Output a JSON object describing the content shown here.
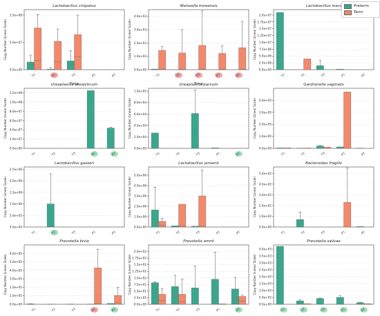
{
  "legend": {
    "preterm_label": "Preterm",
    "term_label": "Term",
    "preterm_color": "#3aa68e",
    "term_color": "#f4886b"
  },
  "colors": {
    "preterm": "#3aa68e",
    "term": "#f4886b",
    "median": "#7f7f7f",
    "highlight_green": "#9fe0bb",
    "highlight_red": "#f0a3a3",
    "grid": "#d9d9d9"
  },
  "chart_data": [
    {
      "type": "bar",
      "title": "Lactobacillus crispatus",
      "xlabel": "Time",
      "ylabel": "Copy Number (Linear Scale)",
      "categories": [
        "T1",
        "T2",
        "T3",
        "P1",
        "P2"
      ],
      "ylim": [
        0,
        2.2
      ],
      "y_exponent": 8,
      "yticks": [
        "0.0e+00",
        "5.0e+07",
        "1.0e+08",
        "1.5e+08",
        "2.0e+08"
      ],
      "highlight": {
        "T2": "red"
      },
      "series": [
        {
          "name": "Preterm",
          "values": [
            0.28,
            0.02,
            0.32,
            0.0,
            0.0
          ],
          "errors": [
            0.53,
            0.08,
            0.7,
            0.0,
            0.0
          ],
          "medians": [
            0.17,
            0.0,
            0.19,
            0.0,
            0.0
          ]
        },
        {
          "name": "Term",
          "values": [
            1.53,
            1.04,
            1.29,
            0.0,
            0.0
          ],
          "errors": [
            2.02,
            1.49,
            2.0,
            0.0,
            0.0
          ],
          "medians": [
            0.33,
            0.28,
            0.48,
            0.0,
            0.0
          ]
        }
      ]
    },
    {
      "type": "bar",
      "title": "Weissella koreensis",
      "xlabel": "Time",
      "ylabel": "Copy Number (Linear Scale)",
      "categories": [
        "T1",
        "T2",
        "T3",
        "P1",
        "P2"
      ],
      "ylim": [
        0,
        4.5
      ],
      "y_exponent": 3,
      "yticks": [
        "0.0e+00",
        "1.0e+03",
        "2.0e+03",
        "3.0e+03",
        "4.0e+03"
      ],
      "highlight": {
        "T2": "red",
        "T3": "red",
        "P1": "red",
        "P2": "red"
      },
      "series": [
        {
          "name": "Preterm",
          "values": [
            0.05,
            0.0,
            0.0,
            0.0,
            0.0
          ],
          "errors": [
            0.0,
            0.0,
            0.0,
            0.0,
            0.0
          ],
          "medians": [
            0.0,
            0.0,
            0.0,
            0.0,
            0.0
          ]
        },
        {
          "name": "Term",
          "values": [
            1.45,
            1.25,
            1.82,
            1.22,
            1.65
          ],
          "errors": [
            1.75,
            3.0,
            4.4,
            1.8,
            3.62
          ],
          "medians": [
            0.04,
            0.04,
            0.04,
            0.04,
            0.04
          ]
        }
      ]
    },
    {
      "type": "bar",
      "title": "Lactobacillus iners",
      "xlabel": "",
      "ylabel": "Copy Number (Linear Scale)",
      "categories": [
        "T1",
        "T2",
        "T3",
        "P1",
        "P2"
      ],
      "ylim": [
        0,
        2.2
      ],
      "y_exponent": 7,
      "yticks": [
        "0.0e+00",
        "2.5e+06",
        "5.0e+06",
        "7.5e+06",
        "1.0e+07",
        "1.25e+07",
        "1.5e+07",
        "1.75e+07",
        "2.0e+07"
      ],
      "ytick_values": [
        0,
        0.25,
        0.5,
        0.75,
        1.0,
        1.25,
        1.5,
        1.75,
        2.0
      ],
      "highlight": {},
      "series": [
        {
          "name": "Preterm",
          "values": [
            2.1,
            0.0,
            0.15,
            0.02,
            0.0
          ],
          "errors": [
            2.1,
            0.0,
            0.35,
            0.02,
            0.0
          ],
          "medians": [
            0.0,
            0.0,
            0.0,
            0.0,
            0.0
          ]
        },
        {
          "name": "Term",
          "values": [
            0.0,
            0.4,
            0.0,
            0.0,
            0.0
          ],
          "errors": [
            0.0,
            0.4,
            0.0,
            0.0,
            0.0
          ],
          "medians": [
            0.0,
            0.0,
            0.0,
            0.0,
            0.0
          ]
        }
      ]
    },
    {
      "type": "bar",
      "title": "Ureaplasma urealyticum",
      "xlabel": "",
      "ylabel": "Copy Number (Linear Scale)",
      "categories": [
        "T1",
        "T2",
        "T3",
        "P1",
        "P2"
      ],
      "ylim": [
        0,
        1.3
      ],
      "y_exponent": 8,
      "yticks": [
        "0.0e+00",
        "2.0e+07",
        "4.0e+07",
        "6.0e+07",
        "8.0e+07",
        "1.0e+08",
        "1.2e+08"
      ],
      "ytick_values": [
        0,
        0.2,
        0.4,
        0.6,
        0.8,
        1.0,
        1.2
      ],
      "highlight": {
        "P1": "green",
        "P2": "green"
      },
      "series": [
        {
          "name": "Preterm",
          "values": [
            0.0,
            0.0,
            0.0,
            1.25,
            0.44
          ],
          "errors": [
            0.0,
            0.0,
            0.0,
            1.25,
            0.46
          ],
          "medians": [
            0.0,
            0.0,
            0.0,
            0.0,
            0.0
          ]
        },
        {
          "name": "Term",
          "values": [
            0.0,
            0.0,
            0.0,
            0.0,
            0.0
          ],
          "errors": [
            0.0,
            0.0,
            0.0,
            0.0,
            0.0
          ],
          "medians": [
            0.0,
            0.0,
            0.0,
            0.0,
            0.0
          ]
        }
      ]
    },
    {
      "type": "bar",
      "title": "Ureaplasma parvum",
      "xlabel": "",
      "ylabel": "Copy Number (Linear Scale)",
      "categories": [
        "T1",
        "T2",
        "T3",
        "P1",
        "P2"
      ],
      "ylim": [
        0,
        1.05
      ],
      "y_exponent": 5,
      "yticks": [
        "0.0e+00",
        "2.0e+04",
        "4.0e+04",
        "6.0e+04",
        "8.0e+04",
        "1.0e+05"
      ],
      "ytick_values": [
        0,
        0.2,
        0.4,
        0.6,
        0.8,
        1.0
      ],
      "highlight": {
        "P2": "green"
      },
      "series": [
        {
          "name": "Preterm",
          "values": [
            0.27,
            0.0,
            0.61,
            0.01,
            0.0
          ],
          "errors": [
            0.27,
            0.0,
            1.02,
            0.01,
            0.0
          ],
          "medians": [
            0.0,
            0.0,
            0.0,
            0.0,
            0.0
          ]
        },
        {
          "name": "Term",
          "values": [
            0.0,
            0.0,
            0.0,
            0.0,
            0.0
          ],
          "errors": [
            0.0,
            0.0,
            0.0,
            0.0,
            0.0
          ],
          "medians": [
            0.0,
            0.0,
            0.0,
            0.0,
            0.0
          ]
        }
      ]
    },
    {
      "type": "bar",
      "title": "Gardnerella vaginalis",
      "xlabel": "",
      "ylabel": "Copy Number (Linear Scale)",
      "categories": [
        "T1",
        "T2",
        "T3",
        "P1",
        "P2"
      ],
      "ylim": [
        0,
        5.0
      ],
      "y_exponent": 5,
      "yticks": [
        "0.0e+00",
        "1.0e+05",
        "2.0e+05",
        "3.0e+05",
        "4.0e+05"
      ],
      "highlight": {},
      "series": [
        {
          "name": "Preterm",
          "values": [
            0.04,
            0.02,
            0.2,
            0.12,
            0.02
          ],
          "errors": [
            0.04,
            0.02,
            0.25,
            0.12,
            0.02
          ],
          "medians": [
            0.0,
            0.0,
            0.0,
            0.0,
            0.0
          ]
        },
        {
          "name": "Term",
          "values": [
            0.05,
            0.03,
            0.1,
            4.7,
            0.0
          ],
          "errors": [
            0.05,
            0.03,
            0.1,
            4.7,
            0.0
          ],
          "medians": [
            0.0,
            0.0,
            0.0,
            0.0,
            0.0
          ]
        }
      ]
    },
    {
      "type": "bar",
      "title": "Lactobacillus gasseri",
      "xlabel": "",
      "ylabel": "Copy Number (Linear Scale)",
      "categories": [
        "T1",
        "T2",
        "T3",
        "P1",
        "P2"
      ],
      "ylim": [
        0,
        2.6
      ],
      "y_exponent": 6,
      "yticks": [
        "0.0e+00",
        "5.0e+05",
        "1.0e+06",
        "1.5e+06",
        "2.0e+06",
        "2.5e+06"
      ],
      "ytick_values": [
        0,
        0.5,
        1.0,
        1.5,
        2.0,
        2.5
      ],
      "highlight": {
        "T2": "green"
      },
      "series": [
        {
          "name": "Preterm",
          "values": [
            0.0,
            1.0,
            0.0,
            0.0,
            0.0
          ],
          "errors": [
            0.0,
            2.3,
            0.0,
            0.0,
            0.0
          ],
          "medians": [
            0.0,
            0.0,
            0.0,
            0.0,
            0.0
          ]
        },
        {
          "name": "Term",
          "values": [
            0.0,
            0.0,
            0.0,
            0.0,
            0.0
          ],
          "errors": [
            0.0,
            0.0,
            0.0,
            0.0,
            0.0
          ],
          "medians": [
            0.0,
            0.0,
            0.0,
            0.0,
            0.0
          ]
        }
      ]
    },
    {
      "type": "bar",
      "title": "Lactobacillus jensenii",
      "xlabel": "",
      "ylabel": "Copy Number (Linear Scale)",
      "categories": [
        "T1",
        "T2",
        "T3",
        "P1",
        "P2"
      ],
      "ylim": [
        0,
        5.8
      ],
      "y_exponent": 6,
      "yticks": [
        "0.0e+00",
        "1.0e+06",
        "2.0e+06",
        "3.0e+06",
        "4.0e+06",
        "5.0e+06"
      ],
      "ytick_values": [
        0,
        1,
        2,
        3,
        4,
        5
      ],
      "highlight": {},
      "series": [
        {
          "name": "Preterm",
          "values": [
            1.65,
            0.12,
            0.08,
            0.0,
            0.0
          ],
          "errors": [
            3.85,
            0.12,
            0.08,
            0.0,
            0.0
          ],
          "medians": [
            0.4,
            0.0,
            0.0,
            0.0,
            0.0
          ]
        },
        {
          "name": "Term",
          "values": [
            0.55,
            2.2,
            3.0,
            0.0,
            0.0
          ],
          "errors": [
            0.85,
            2.2,
            5.5,
            0.0,
            0.0
          ],
          "medians": [
            0.15,
            0.08,
            0.08,
            0.0,
            0.0
          ]
        }
      ]
    },
    {
      "type": "bar",
      "title": "Bacteroides fragilis",
      "xlabel": "",
      "ylabel": "Copy Number (Linear Scale)",
      "categories": [
        "T1",
        "T2",
        "T3",
        "P1",
        "P2"
      ],
      "ylim": [
        0,
        5.6
      ],
      "y_exponent": 2,
      "yticks": [
        "0.0e+00",
        "1.0e+02",
        "2.0e+02",
        "3.0e+02",
        "4.0e+02",
        "5.0e+02"
      ],
      "highlight": {},
      "series": [
        {
          "name": "Preterm",
          "values": [
            0.0,
            0.7,
            0.0,
            0.0,
            0.05
          ],
          "errors": [
            0.0,
            1.4,
            0.0,
            0.0,
            0.05
          ],
          "medians": [
            0.0,
            0.0,
            0.0,
            0.0,
            0.0
          ]
        },
        {
          "name": "Term",
          "values": [
            0.0,
            0.0,
            0.0,
            2.3,
            0.0
          ],
          "errors": [
            0.0,
            0.0,
            0.0,
            5.5,
            0.0
          ],
          "medians": [
            0.0,
            0.0,
            0.0,
            0.0,
            0.0
          ]
        }
      ]
    },
    {
      "type": "bar",
      "title": "Prevotella bivia",
      "xlabel": "Time",
      "ylabel": "Copy Number (Linear Scale)",
      "categories": [
        "T1",
        "T2",
        "T3",
        "P1",
        "P2"
      ],
      "ylim": [
        0,
        7.0
      ],
      "y_exponent": 5,
      "yticks": [
        "0.0e+00",
        "1.0e+05",
        "2.0e+05",
        "3.0e+05",
        "4.0e+05",
        "5.0e+05",
        "6.0e+05"
      ],
      "highlight": {
        "P1": "red",
        "P2": "green"
      },
      "series": [
        {
          "name": "Preterm",
          "values": [
            0.05,
            0.02,
            0.03,
            0.03,
            0.1
          ],
          "errors": [
            0.07,
            0.02,
            0.03,
            0.03,
            0.1
          ],
          "medians": [
            0.0,
            0.0,
            0.0,
            0.0,
            0.0
          ]
        },
        {
          "name": "Term",
          "values": [
            0.0,
            0.0,
            0.0,
            4.3,
            1.05
          ],
          "errors": [
            0.0,
            0.0,
            0.0,
            6.5,
            2.0
          ],
          "medians": [
            0.0,
            0.0,
            0.0,
            0.1,
            0.15
          ]
        }
      ]
    },
    {
      "type": "bar",
      "title": "Prevotella amnii",
      "xlabel": "Time",
      "ylabel": "Copy Number (Linear Scale)",
      "categories": [
        "T1",
        "T2",
        "T3",
        "P1",
        "P2"
      ],
      "ylim": [
        0,
        2.25
      ],
      "y_exponent": 2,
      "yticks": [
        "0.0e+00",
        "2.5e+01",
        "5.0e+01",
        "7.5e+01",
        "1.0e+02",
        "1.25e+02",
        "1.5e+02",
        "1.75e+02",
        "2.0e+02"
      ],
      "ytick_values": [
        0,
        0.25,
        0.5,
        0.75,
        1.0,
        1.25,
        1.5,
        1.75,
        2.0
      ],
      "highlight": {
        "P2": "green"
      },
      "series": [
        {
          "name": "Preterm",
          "values": [
            0.82,
            0.67,
            0.62,
            0.95,
            0.58
          ],
          "errors": [
            0.85,
            1.1,
            1.46,
            1.98,
            1.02
          ],
          "medians": [
            0.6,
            0.35,
            0.0,
            0.25,
            0.2
          ]
        },
        {
          "name": "Term",
          "values": [
            0.38,
            0.38,
            0.0,
            0.02,
            0.3
          ],
          "errors": [
            0.6,
            0.95,
            0.0,
            0.02,
            0.35
          ],
          "medians": [
            0.15,
            0.1,
            0.0,
            0.0,
            0.12
          ]
        }
      ]
    },
    {
      "type": "bar",
      "title": "Prevotella salivae",
      "xlabel": "Time",
      "ylabel": "Copy Number (Linear Scale)",
      "categories": [
        "T1",
        "T2",
        "T3",
        "P1",
        "P2"
      ],
      "ylim": [
        0,
        4.3
      ],
      "y_exponent": 3,
      "yticks": [
        "0.0e+00",
        "5.0e+02",
        "1.0e+03",
        "1.5e+03",
        "2.0e+03",
        "2.5e+03",
        "3.0e+03",
        "3.5e+03",
        "4.0e+03"
      ],
      "ytick_values": [
        0,
        0.5,
        1.0,
        1.5,
        2.0,
        2.5,
        3.0,
        3.5,
        4.0
      ],
      "highlight": {
        "T1": "green",
        "T2": "green",
        "T3": "green",
        "P1": "green",
        "P2": "green"
      },
      "series": [
        {
          "name": "Preterm",
          "values": [
            4.2,
            0.25,
            0.42,
            0.5,
            0.12
          ],
          "errors": [
            4.2,
            0.35,
            0.45,
            0.62,
            0.14
          ],
          "medians": [
            0.0,
            0.0,
            0.0,
            0.0,
            0.0
          ]
        },
        {
          "name": "Term",
          "values": [
            0.0,
            0.05,
            0.0,
            0.0,
            0.05
          ],
          "errors": [
            0.0,
            0.05,
            0.0,
            0.0,
            0.05
          ],
          "medians": [
            0.0,
            0.0,
            0.0,
            0.0,
            0.0
          ]
        }
      ]
    }
  ]
}
